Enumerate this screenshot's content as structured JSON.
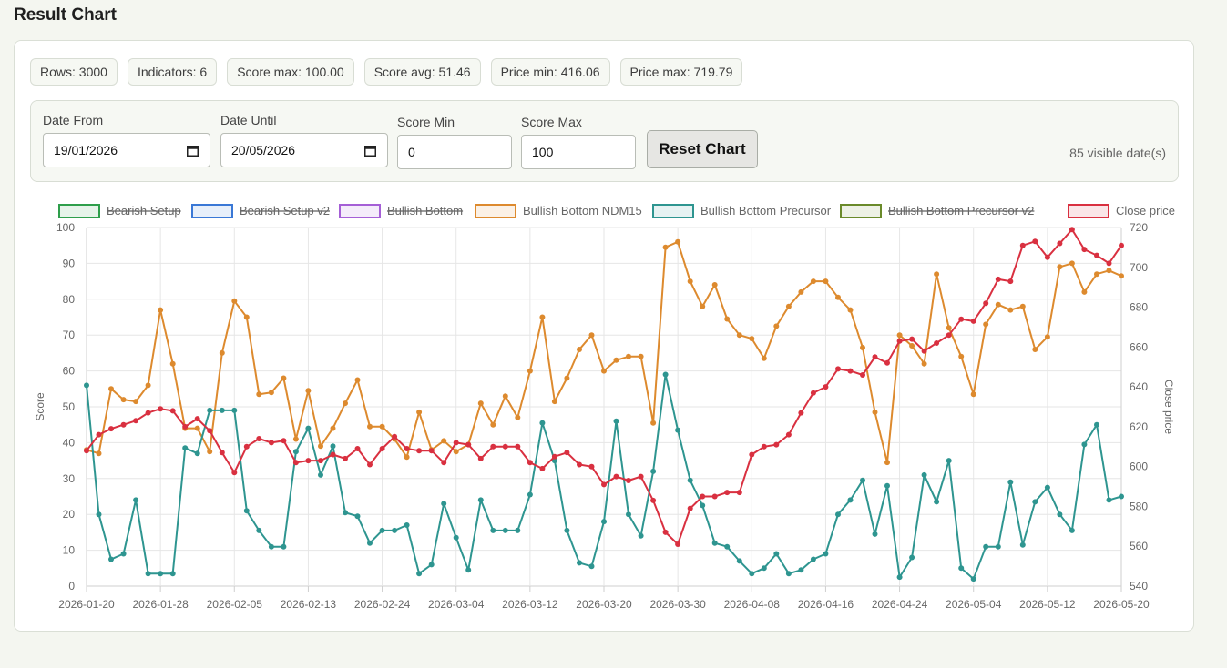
{
  "page_title": "Result Chart",
  "stats": [
    "Rows: 3000",
    "Indicators: 6",
    "Score max: 100.00",
    "Score avg: 51.46",
    "Price min: 416.06",
    "Price max: 719.79"
  ],
  "filters": {
    "date_from": {
      "label": "Date From",
      "value": "19/01/2026"
    },
    "date_until": {
      "label": "Date Until",
      "value": "20/05/2026"
    },
    "score_min": {
      "label": "Score Min",
      "value": "0"
    },
    "score_max": {
      "label": "Score Max",
      "value": "100"
    },
    "reset_label": "Reset Chart",
    "visible_dates": "85 visible date(s)"
  },
  "chart_data": {
    "type": "line",
    "y_label": "Score",
    "y2_label": "Close price",
    "y_range": [
      0,
      100
    ],
    "y_ticks": [
      "0",
      "10",
      "20",
      "30",
      "40",
      "50",
      "60",
      "70",
      "80",
      "90",
      "100"
    ],
    "y2_range": [
      540,
      720
    ],
    "y2_ticks": [
      "540",
      "560",
      "580",
      "600",
      "620",
      "640",
      "660",
      "680",
      "700",
      "720"
    ],
    "x_tick_labels": [
      "2026-01-20",
      "2026-01-28",
      "2026-02-05",
      "2026-02-13",
      "2026-02-24",
      "2026-03-04",
      "2026-03-12",
      "2026-03-20",
      "2026-03-30",
      "2026-04-08",
      "2026-04-16",
      "2026-04-24",
      "2026-05-04",
      "2026-05-12",
      "2026-05-20"
    ],
    "x_tick_index_step": 6,
    "grid": true,
    "legend_position": "top",
    "legend": [
      {
        "name": "Bearish Setup",
        "color": "#2e9e4b",
        "hidden": true
      },
      {
        "name": "Bearish Setup v2",
        "color": "#3a78d6",
        "hidden": true
      },
      {
        "name": "Bullish Bottom",
        "color": "#a55fd6",
        "hidden": true
      },
      {
        "name": "Bullish Bottom NDM15",
        "color": "#dd8a2e",
        "hidden": false
      },
      {
        "name": "Bullish Bottom Precursor",
        "color": "#2e9590",
        "hidden": false
      },
      {
        "name": "Bullish Bottom Precursor v2",
        "color": "#6a8a2a",
        "hidden": true
      },
      {
        "name": "Close price",
        "color": "#d93040",
        "hidden": false
      }
    ],
    "series": [
      {
        "name": "Bullish Bottom NDM15",
        "color": "#dd8a2e",
        "axis": "left",
        "values": [
          38,
          37,
          55,
          52,
          51.5,
          56,
          77,
          62,
          44,
          44,
          37.5,
          65,
          79.5,
          75,
          53.5,
          54,
          58,
          41,
          54.5,
          39,
          44,
          51,
          57.5,
          44.5,
          44.5,
          41,
          36,
          48.5,
          38,
          40.5,
          37.5,
          39.5,
          51,
          45,
          53,
          47,
          60,
          75,
          51.5,
          58,
          66,
          70,
          60,
          63,
          64,
          64,
          45.5,
          94.5,
          96,
          85,
          78,
          84,
          74.5,
          70,
          69,
          63.5,
          72.5,
          78,
          82,
          85,
          85,
          80.5,
          77,
          66.5,
          48.5,
          34.5,
          70,
          67,
          62,
          87,
          72,
          64,
          53.5,
          73,
          78.5,
          77,
          78,
          66,
          69.5,
          89,
          90,
          82,
          87,
          88,
          86.5
        ]
      },
      {
        "name": "Bullish Bottom Precursor",
        "color": "#2e9590",
        "axis": "left",
        "values": [
          56,
          20,
          7.5,
          9,
          24,
          3.5,
          3.5,
          3.5,
          38.5,
          37,
          49,
          49,
          49,
          21,
          15.5,
          11,
          11,
          37.5,
          44,
          31,
          39,
          20.5,
          19.5,
          12,
          15.5,
          15.5,
          17,
          3.5,
          6,
          23,
          13.5,
          4.5,
          24,
          15.5,
          15.5,
          15.5,
          25.5,
          45.5,
          35,
          15.5,
          6.5,
          5.5,
          18,
          46,
          20,
          14,
          32,
          59,
          43.5,
          29.5,
          22.5,
          12,
          11,
          7,
          3.5,
          5,
          9,
          3.5,
          4.5,
          7.5,
          9,
          20,
          24,
          29.5,
          14.5,
          28,
          2.5,
          8,
          31,
          23.5,
          35,
          5,
          2,
          11,
          11,
          29,
          11.5,
          23.5,
          27.5,
          20,
          15.5,
          39.5,
          45,
          24,
          25
        ]
      },
      {
        "name": "Close price",
        "color": "#d93040",
        "axis": "right",
        "values": [
          608,
          616,
          619,
          621,
          623,
          627,
          629,
          628,
          620,
          624,
          618,
          607,
          597,
          610,
          614,
          612,
          613,
          602,
          603,
          603,
          606,
          604,
          609,
          601,
          609,
          615,
          609,
          608,
          608,
          602,
          612,
          611,
          604,
          610,
          610,
          610,
          602,
          599,
          605,
          607,
          601,
          600,
          591,
          595,
          593,
          595,
          583,
          567,
          561,
          579,
          585,
          585,
          587,
          587,
          606,
          610,
          611,
          616,
          627,
          637,
          640,
          649,
          648,
          646,
          655,
          652,
          663,
          664,
          658,
          662,
          666,
          674,
          673,
          682,
          694,
          693,
          711,
          713,
          705,
          712,
          719,
          709,
          706,
          702,
          711
        ]
      }
    ]
  }
}
